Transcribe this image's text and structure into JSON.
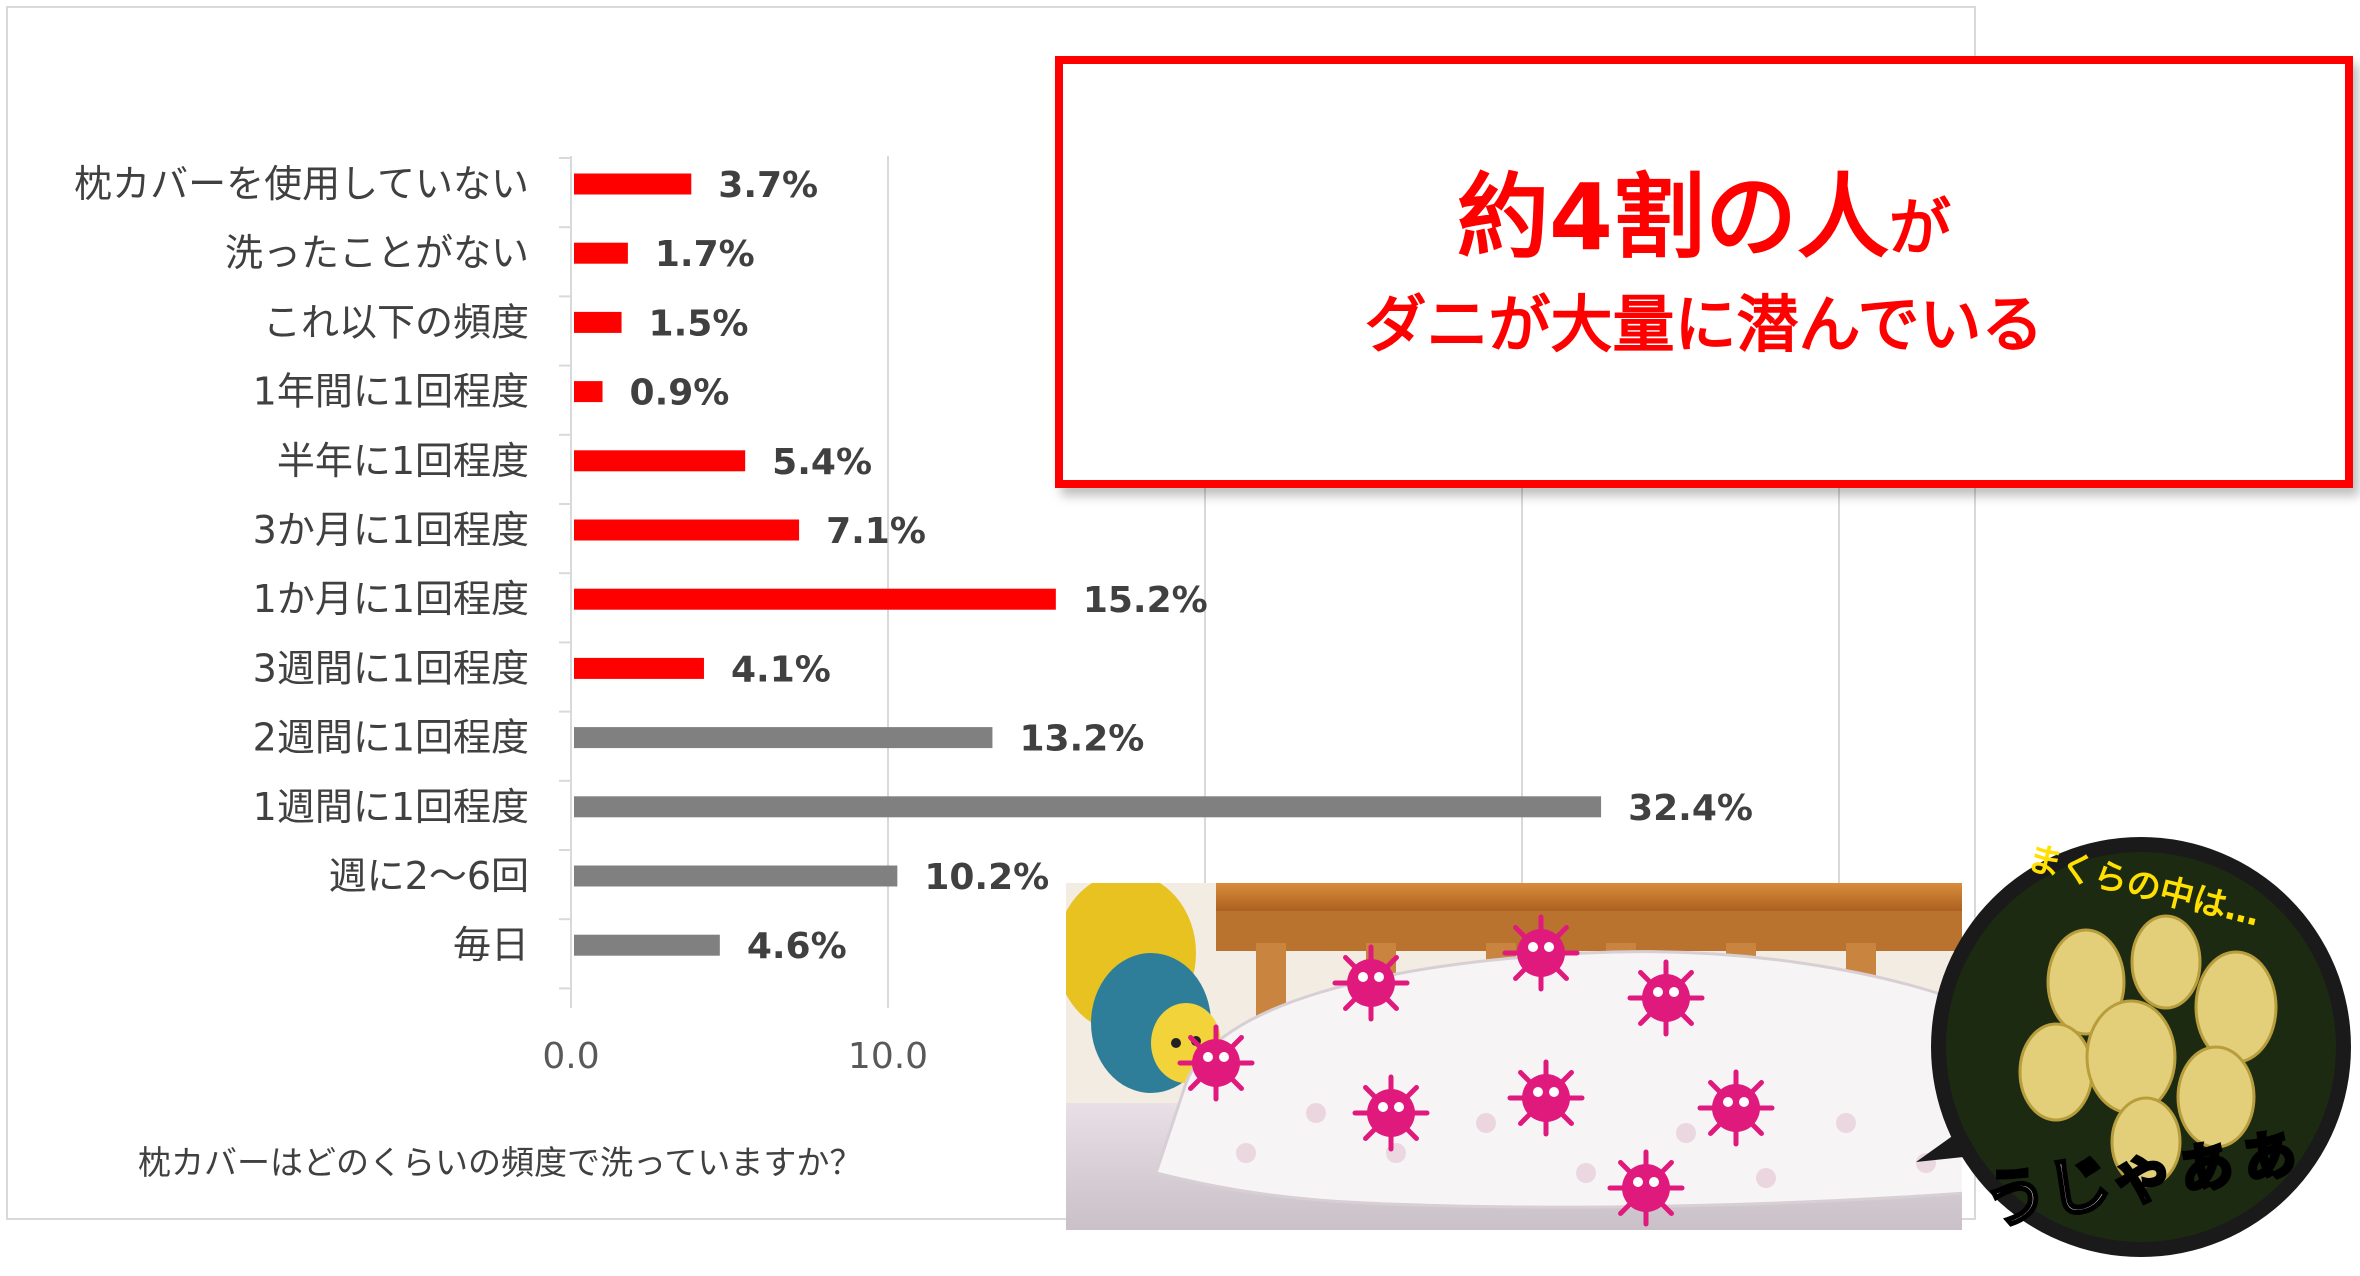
{
  "chart_data": {
    "type": "bar",
    "orientation": "horizontal",
    "categories": [
      "枕カバーを使用していない",
      "洗ったことがない",
      "これ以下の頻度",
      "1年間に1回程度",
      "半年に1回程度",
      "3か月に1回程度",
      "1か月に1回程度",
      "3週間に1回程度",
      "2週間に1回程度",
      "1週間に1回程度",
      "週に2～6回",
      "毎日"
    ],
    "values": [
      3.7,
      1.7,
      1.5,
      0.9,
      5.4,
      7.1,
      15.2,
      4.1,
      13.2,
      32.4,
      10.2,
      4.6
    ],
    "value_labels": [
      "3.7%",
      "1.7%",
      "1.5%",
      "0.9%",
      "5.4%",
      "7.1%",
      "15.2%",
      "4.1%",
      "13.2%",
      "32.4%",
      "10.2%",
      "4.6%"
    ],
    "bar_colors": [
      "#ff0000",
      "#ff0000",
      "#ff0000",
      "#ff0000",
      "#ff0000",
      "#ff0000",
      "#ff0000",
      "#ff0000",
      "#808080",
      "#808080",
      "#808080",
      "#808080"
    ],
    "xlim": [
      0,
      40
    ],
    "x_ticks": [
      "0.0",
      "10.0"
    ],
    "grid": "vertical",
    "caption": "枕カバーはどのくらいの頻度で洗っていますか？"
  },
  "callout": {
    "main": "約4割の人",
    "main_suffix": "が",
    "sub": "ダニが大量に潜んでいる",
    "color": "#ff0000"
  },
  "photo": {
    "bubble_text": "まくらの中は…",
    "bubble_exclaim": "うじゃぁぁ",
    "mite_color": "#e0197d",
    "icons": [
      "mite-icon",
      "pillow-illustration",
      "plush-toy-icon"
    ]
  }
}
